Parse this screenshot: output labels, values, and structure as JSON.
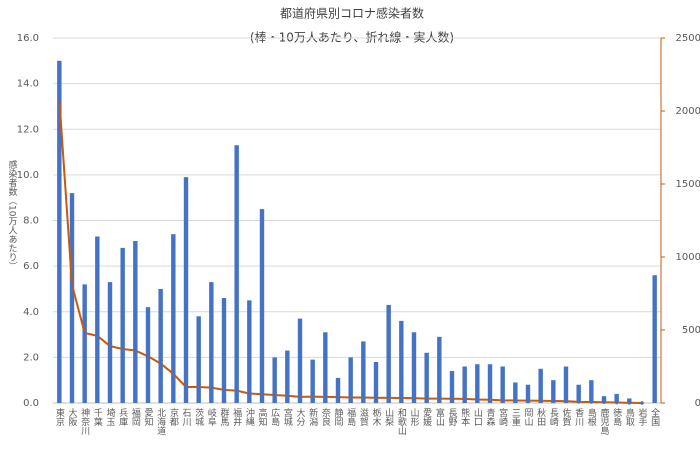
{
  "chart_data": {
    "type": "bar_line",
    "title": "都道府県別コロナ感染者数",
    "subtitle": "(棒・10万人あたり、折れ線・実人数)",
    "y_label": "感染者数（10万人あたり）",
    "categories": [
      "東京",
      "大阪",
      "神奈川",
      "千葉",
      "埼玉",
      "兵庫",
      "福岡",
      "愛知",
      "北海道",
      "京都",
      "石川",
      "茨城",
      "岐阜",
      "群馬",
      "福井",
      "沖縄",
      "高知",
      "広島",
      "宮城",
      "大分",
      "新潟",
      "奈良",
      "静岡",
      "福島",
      "滋賀",
      "栃木",
      "山梨",
      "和歌山",
      "山形",
      "愛媛",
      "富山",
      "長野",
      "熊本",
      "山口",
      "青森",
      "宮崎",
      "三重",
      "岡山",
      "秋田",
      "長崎",
      "佐賀",
      "香川",
      "島根",
      "鹿児島",
      "徳島",
      "鳥取",
      "岩手",
      "全国"
    ],
    "series": [
      {
        "type": "bar",
        "color": "#4472c4",
        "axis": "y",
        "values": [
          15.0,
          9.2,
          5.2,
          7.3,
          5.3,
          6.8,
          7.1,
          4.2,
          5.0,
          7.4,
          9.9,
          3.8,
          5.3,
          4.6,
          11.3,
          4.5,
          8.5,
          2.0,
          2.3,
          3.7,
          1.9,
          3.1,
          1.1,
          2.0,
          2.7,
          1.8,
          4.3,
          3.6,
          3.1,
          2.2,
          2.9,
          1.4,
          1.6,
          1.7,
          1.7,
          1.6,
          0.9,
          0.8,
          1.5,
          1.0,
          1.6,
          0.8,
          1.0,
          0.3,
          0.4,
          0.2,
          0.0,
          5.6
        ]
      },
      {
        "type": "line",
        "color": "#c55a11",
        "axis": "y2",
        "values": [
          2080,
          810,
          480,
          460,
          390,
          370,
          360,
          320,
          270,
          200,
          110,
          110,
          105,
          90,
          85,
          65,
          60,
          55,
          50,
          42,
          44,
          42,
          40,
          38,
          38,
          36,
          35,
          34,
          33,
          30,
          30,
          29,
          28,
          24,
          22,
          18,
          17,
          16,
          15,
          14,
          13,
          8,
          7,
          5,
          3,
          1,
          0,
          null
        ]
      }
    ],
    "ylim": [
      0,
      16
    ],
    "yticks": [
      {
        "value": 0,
        "label": "0.0"
      },
      {
        "value": 2,
        "label": "2.0"
      },
      {
        "value": 4,
        "label": "4.0"
      },
      {
        "value": 6,
        "label": "6.0"
      },
      {
        "value": 8,
        "label": "8.0"
      },
      {
        "value": 10,
        "label": "10.0"
      },
      {
        "value": 12,
        "label": "12.0"
      },
      {
        "value": 14,
        "label": "14.0"
      },
      {
        "value": 16,
        "label": "16.0"
      }
    ],
    "y2lim": [
      0,
      2500
    ],
    "y2ticks": [
      0,
      500,
      1000,
      1500,
      2000,
      2500
    ],
    "grid": true
  }
}
